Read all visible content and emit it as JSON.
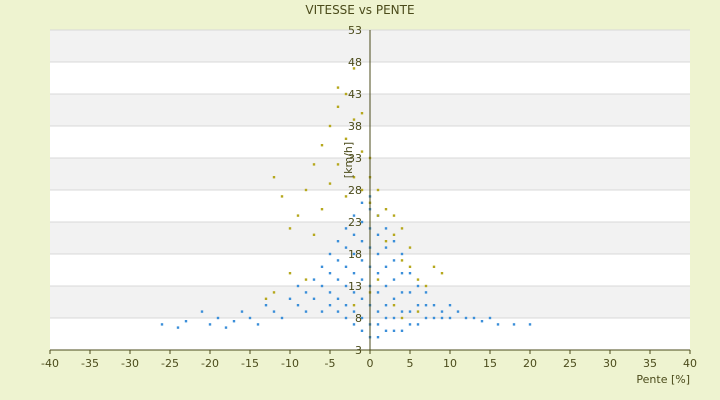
{
  "chart_data": {
    "type": "scatter",
    "title": "VITESSE vs PENTE",
    "xlabel": "Pente [%]",
    "ylabel": "[km/h]",
    "xlim": [
      -40,
      40
    ],
    "ylim": [
      3,
      53
    ],
    "x_ticks": [
      "-40",
      "-35",
      "-30",
      "-25",
      "-20",
      "-15",
      "-10",
      "-5",
      "0",
      "5",
      "10",
      "15",
      "20",
      "25",
      "30",
      "35",
      "40"
    ],
    "y_ticks": [
      "53",
      "48",
      "43",
      "38",
      "33",
      "28",
      "23",
      "18",
      "13",
      "8",
      "3"
    ],
    "grid": true,
    "legend": "none",
    "colors": {
      "series_blue": "#3b8fd9",
      "series_olive": "#b6a81e",
      "band_light": "#f2f2f2",
      "band_white": "#ffffff",
      "background": "#eef3d0",
      "text": "#4b4b1b"
    },
    "series": [
      {
        "color_key": "series_blue",
        "points": [
          [
            -26,
            7
          ],
          [
            -24,
            6.5
          ],
          [
            -23,
            7.5
          ],
          [
            -21,
            9
          ],
          [
            -20,
            7
          ],
          [
            -19,
            8
          ],
          [
            -18,
            6.5
          ],
          [
            -17,
            7.5
          ],
          [
            -16,
            9
          ],
          [
            -15,
            8
          ],
          [
            -14,
            7
          ],
          [
            -13,
            10
          ],
          [
            -12,
            9
          ],
          [
            -11,
            8
          ],
          [
            -10,
            11
          ],
          [
            -9,
            10
          ],
          [
            -9,
            13
          ],
          [
            -8,
            9
          ],
          [
            -8,
            12
          ],
          [
            -7,
            11
          ],
          [
            -7,
            14
          ],
          [
            -6,
            9
          ],
          [
            -6,
            13
          ],
          [
            -6,
            16
          ],
          [
            -5,
            10
          ],
          [
            -5,
            12
          ],
          [
            -5,
            15
          ],
          [
            -5,
            18
          ],
          [
            -4,
            9
          ],
          [
            -4,
            11
          ],
          [
            -4,
            14
          ],
          [
            -4,
            17
          ],
          [
            -4,
            20
          ],
          [
            -3,
            8
          ],
          [
            -3,
            10
          ],
          [
            -3,
            13
          ],
          [
            -3,
            16
          ],
          [
            -3,
            19
          ],
          [
            -3,
            22
          ],
          [
            -2,
            7
          ],
          [
            -2,
            9
          ],
          [
            -2,
            12
          ],
          [
            -2,
            15
          ],
          [
            -2,
            18
          ],
          [
            -2,
            21
          ],
          [
            -2,
            24
          ],
          [
            -1,
            6
          ],
          [
            -1,
            8
          ],
          [
            -1,
            11
          ],
          [
            -1,
            14
          ],
          [
            -1,
            17
          ],
          [
            -1,
            20
          ],
          [
            -1,
            23
          ],
          [
            -1,
            26
          ],
          [
            0,
            5
          ],
          [
            0,
            7
          ],
          [
            0,
            10
          ],
          [
            0,
            13
          ],
          [
            0,
            16
          ],
          [
            0,
            19
          ],
          [
            0,
            22
          ],
          [
            0,
            25
          ],
          [
            0,
            27
          ],
          [
            1,
            5
          ],
          [
            1,
            7
          ],
          [
            1,
            9
          ],
          [
            1,
            12
          ],
          [
            1,
            15
          ],
          [
            1,
            18
          ],
          [
            1,
            21
          ],
          [
            1,
            24
          ],
          [
            2,
            6
          ],
          [
            2,
            8
          ],
          [
            2,
            10
          ],
          [
            2,
            13
          ],
          [
            2,
            16
          ],
          [
            2,
            19
          ],
          [
            2,
            22
          ],
          [
            3,
            6
          ],
          [
            3,
            8
          ],
          [
            3,
            11
          ],
          [
            3,
            14
          ],
          [
            3,
            17
          ],
          [
            3,
            20
          ],
          [
            4,
            6
          ],
          [
            4,
            9
          ],
          [
            4,
            12
          ],
          [
            4,
            15
          ],
          [
            4,
            18
          ],
          [
            5,
            7
          ],
          [
            5,
            9
          ],
          [
            5,
            12
          ],
          [
            5,
            15
          ],
          [
            6,
            7
          ],
          [
            6,
            10
          ],
          [
            6,
            13
          ],
          [
            7,
            8
          ],
          [
            7,
            10
          ],
          [
            7,
            12
          ],
          [
            8,
            8
          ],
          [
            8,
            10
          ],
          [
            9,
            8
          ],
          [
            9,
            9
          ],
          [
            10,
            8
          ],
          [
            10,
            10
          ],
          [
            11,
            9
          ],
          [
            12,
            8
          ],
          [
            13,
            8
          ],
          [
            14,
            7.5
          ],
          [
            15,
            8
          ],
          [
            16,
            7
          ],
          [
            18,
            7
          ],
          [
            20,
            7
          ]
        ]
      },
      {
        "color_key": "series_olive",
        "points": [
          [
            -13,
            11
          ],
          [
            -12,
            30
          ],
          [
            -11,
            27
          ],
          [
            -10,
            22
          ],
          [
            -9,
            24
          ],
          [
            -8,
            28
          ],
          [
            -7,
            21
          ],
          [
            -7,
            32
          ],
          [
            -6,
            25
          ],
          [
            -6,
            35
          ],
          [
            -5,
            29
          ],
          [
            -5,
            38
          ],
          [
            -4,
            32
          ],
          [
            -4,
            41
          ],
          [
            -4,
            44
          ],
          [
            -3,
            27
          ],
          [
            -3,
            36
          ],
          [
            -3,
            43
          ],
          [
            -2,
            30
          ],
          [
            -2,
            39
          ],
          [
            -2,
            47
          ],
          [
            -1,
            28
          ],
          [
            -1,
            34
          ],
          [
            -1,
            40
          ],
          [
            0,
            26
          ],
          [
            0,
            30
          ],
          [
            0,
            33
          ],
          [
            1,
            24
          ],
          [
            1,
            28
          ],
          [
            2,
            20
          ],
          [
            2,
            25
          ],
          [
            3,
            21
          ],
          [
            3,
            24
          ],
          [
            4,
            17
          ],
          [
            4,
            22
          ],
          [
            5,
            16
          ],
          [
            5,
            19
          ],
          [
            6,
            14
          ],
          [
            7,
            13
          ],
          [
            8,
            16
          ],
          [
            9,
            15
          ],
          [
            -8,
            14
          ],
          [
            -10,
            15
          ],
          [
            -12,
            12
          ],
          [
            6,
            9
          ],
          [
            4,
            8
          ],
          [
            -2,
            10
          ],
          [
            0,
            12
          ],
          [
            1,
            14
          ],
          [
            3,
            10
          ]
        ]
      }
    ]
  }
}
